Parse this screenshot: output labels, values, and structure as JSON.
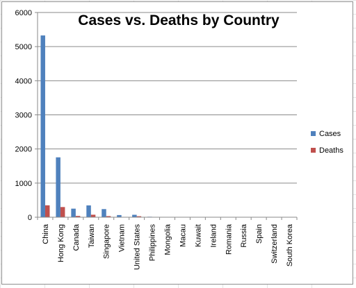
{
  "chart_data": {
    "type": "bar",
    "title": "Cases vs. Deaths by Country",
    "xlabel": "",
    "ylabel": "",
    "ylim": [
      0,
      6000
    ],
    "yticks": [
      0,
      1000,
      2000,
      3000,
      4000,
      5000,
      6000
    ],
    "grid": true,
    "legend_position": "right",
    "categories": [
      "China",
      "Hong Kong",
      "Canada",
      "Taiwan",
      "Singapore",
      "Vietnam",
      "United States",
      "Philippines",
      "Mongolia",
      "Macau",
      "Kuwait",
      "Ireland",
      "Romania",
      "Russia",
      "Spain",
      "Switzerland",
      "South Korea"
    ],
    "series": [
      {
        "name": "Cases",
        "color": "#4F81BD",
        "values": [
          5327,
          1755,
          251,
          346,
          238,
          63,
          71,
          14,
          9,
          1,
          1,
          1,
          1,
          1,
          1,
          1,
          3
        ]
      },
      {
        "name": "Deaths",
        "color": "#C0504D",
        "values": [
          349,
          298,
          38,
          73,
          33,
          5,
          29,
          2,
          0,
          0,
          0,
          0,
          0,
          0,
          0,
          0,
          0
        ]
      }
    ]
  }
}
